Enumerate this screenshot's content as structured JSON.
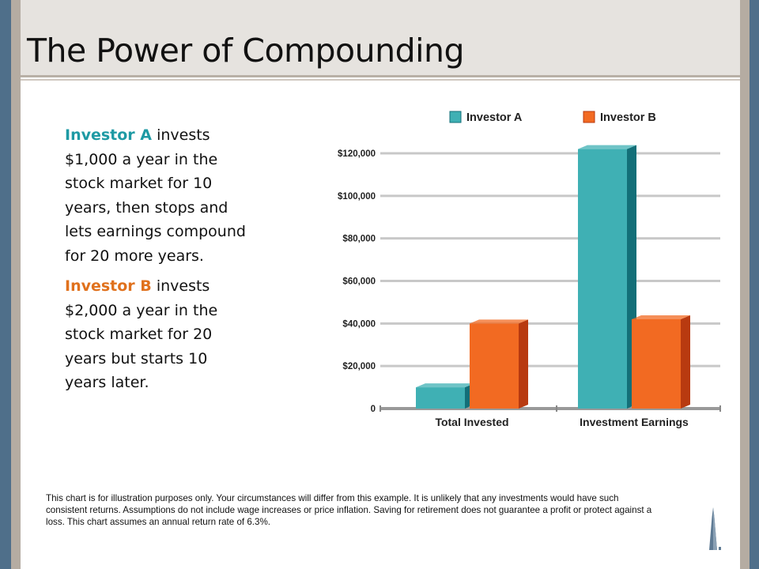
{
  "title": "The Power of Compounding",
  "investor_a": {
    "name": "Investor A",
    "text": "invests $1,000 a year in the stock market for 10 years, then stops and lets earnings compound for 20 more years."
  },
  "investor_b": {
    "name": "Investor B",
    "text": "invests $2,000 a year in the stock market for 20 years but starts 10 years later."
  },
  "disclaimer": "This chart is for illustration purposes only. Your circumstances will differ from this example. It is unlikely that any investments would have such consistent returns. Assumptions do not include wage increases or price inflation. Saving for retirement does not guarantee a profit or protect against a loss. This chart assumes an annual return rate of 6.3%.",
  "chart_data": {
    "type": "bar",
    "categories": [
      "Total Invested",
      "Investment Earnings"
    ],
    "series": [
      {
        "name": "Investor A",
        "values": [
          10000,
          122000
        ],
        "color": "#3fb0b4",
        "side_color": "#136f78"
      },
      {
        "name": "Investor B",
        "values": [
          40000,
          42000
        ],
        "color": "#f26a22",
        "side_color": "#b83a10"
      }
    ],
    "yticks": [
      {
        "value": 0,
        "label": "0"
      },
      {
        "value": 20000,
        "label": "$20,000"
      },
      {
        "value": 40000,
        "label": "$40,000"
      },
      {
        "value": 60000,
        "label": "$60,000"
      },
      {
        "value": 80000,
        "label": "$80,000"
      },
      {
        "value": 100000,
        "label": "$100,000"
      },
      {
        "value": 120000,
        "label": "$120,000"
      }
    ],
    "ylim": [
      0,
      120000
    ],
    "grid": true,
    "legend_position": "top"
  }
}
